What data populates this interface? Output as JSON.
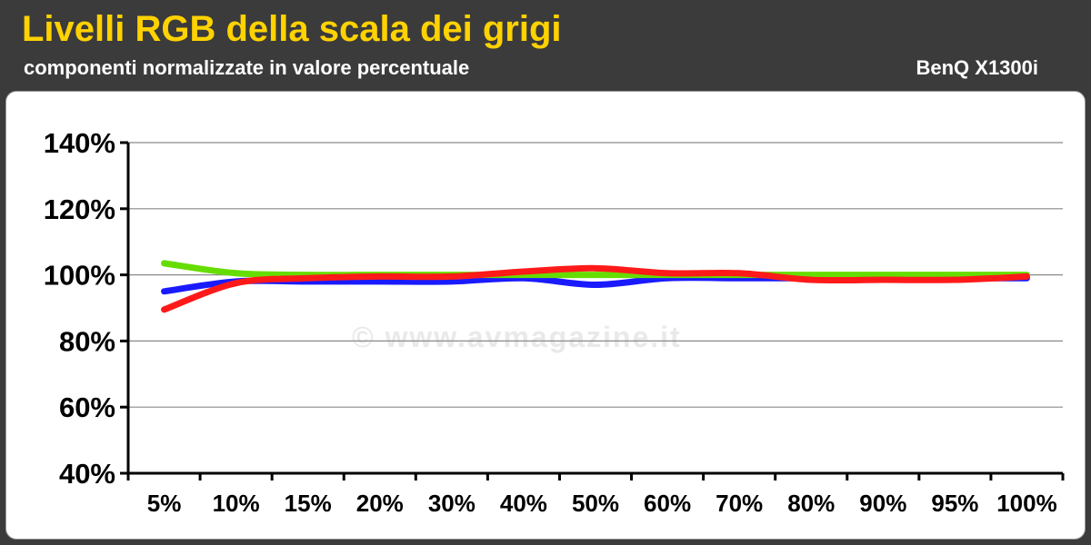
{
  "header": {
    "title": "Livelli RGB della scala dei grigi",
    "subtitle": "componenti normalizzate in valore percentuale",
    "model": "BenQ X1300i"
  },
  "watermark": {
    "text": "© www.avmagazine.it",
    "logo_text": "AVMagazine"
  },
  "colors": {
    "background": "#3b3b3b",
    "title": "#ffd200",
    "red": "#ff1a1a",
    "green": "#66dd00",
    "blue": "#1a1aff"
  },
  "chart_data": {
    "type": "line",
    "categories": [
      "5%",
      "10%",
      "15%",
      "20%",
      "30%",
      "40%",
      "50%",
      "60%",
      "70%",
      "80%",
      "90%",
      "95%",
      "100%"
    ],
    "y_ticks": [
      "40%",
      "60%",
      "80%",
      "100%",
      "120%",
      "140%"
    ],
    "ylim": [
      40,
      140
    ],
    "grid": true,
    "series": [
      {
        "color": "#1a1aff",
        "values": [
          95,
          98,
          98,
          98,
          98,
          99,
          97,
          99,
          99,
          99,
          99,
          99,
          99
        ]
      },
      {
        "color": "#66dd00",
        "values": [
          103.5,
          100.5,
          100,
          100,
          100,
          100,
          100,
          100,
          100,
          100,
          100,
          100,
          100
        ]
      },
      {
        "color": "#ff1a1a",
        "values": [
          89.5,
          97.5,
          99,
          99.5,
          99.5,
          101,
          102,
          100.5,
          100.5,
          98.5,
          98.5,
          98.5,
          99.5
        ]
      }
    ]
  }
}
